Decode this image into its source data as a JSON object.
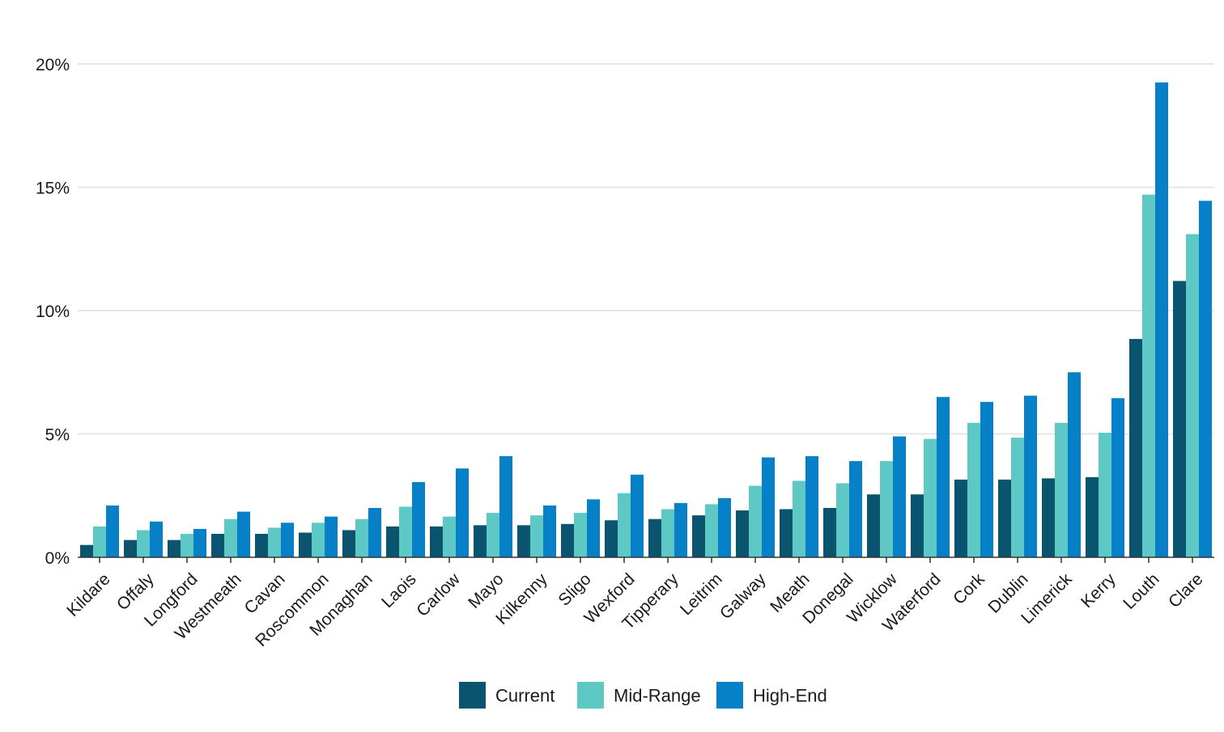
{
  "chart_data": {
    "type": "bar",
    "title": "",
    "xlabel": "",
    "ylabel": "",
    "ylim": [
      0,
      20
    ],
    "yticks": [
      0,
      5,
      10,
      15,
      20
    ],
    "ytick_labels": [
      "0%",
      "5%",
      "10%",
      "15%",
      "20%"
    ],
    "grid": true,
    "legend_position": "bottom-center",
    "categories": [
      "Kildare",
      "Offaly",
      "Longford",
      "Westmeath",
      "Cavan",
      "Roscommon",
      "Monaghan",
      "Laois",
      "Carlow",
      "Mayo",
      "Kilkenny",
      "Sligo",
      "Wexford",
      "Tipperary",
      "Leitrim",
      "Galway",
      "Meath",
      "Donegal",
      "Wicklow",
      "Waterford",
      "Cork",
      "Dublin",
      "Limerick",
      "Kerry",
      "Louth",
      "Clare"
    ],
    "series": [
      {
        "name": "Current",
        "color": "#0b5470",
        "values": [
          0.5,
          0.7,
          0.7,
          0.95,
          0.95,
          1.0,
          1.1,
          1.25,
          1.25,
          1.3,
          1.3,
          1.35,
          1.5,
          1.55,
          1.7,
          1.9,
          1.95,
          2.0,
          2.55,
          2.55,
          3.15,
          3.15,
          3.2,
          3.25,
          8.85,
          11.2
        ]
      },
      {
        "name": "Mid-Range",
        "color": "#5ec8c4",
        "values": [
          1.25,
          1.1,
          0.95,
          1.55,
          1.2,
          1.4,
          1.55,
          2.05,
          1.65,
          1.8,
          1.7,
          1.8,
          2.6,
          1.95,
          2.15,
          2.9,
          3.1,
          3.0,
          3.9,
          4.8,
          5.45,
          4.85,
          5.45,
          5.05,
          14.7,
          13.1
        ]
      },
      {
        "name": "High-End",
        "color": "#0681c8",
        "values": [
          2.1,
          1.45,
          1.15,
          1.85,
          1.4,
          1.65,
          2.0,
          3.05,
          3.6,
          4.1,
          2.1,
          2.35,
          3.35,
          2.2,
          2.4,
          4.05,
          4.1,
          3.9,
          4.9,
          6.5,
          6.3,
          6.55,
          7.5,
          6.45,
          19.25,
          14.45
        ]
      }
    ]
  }
}
